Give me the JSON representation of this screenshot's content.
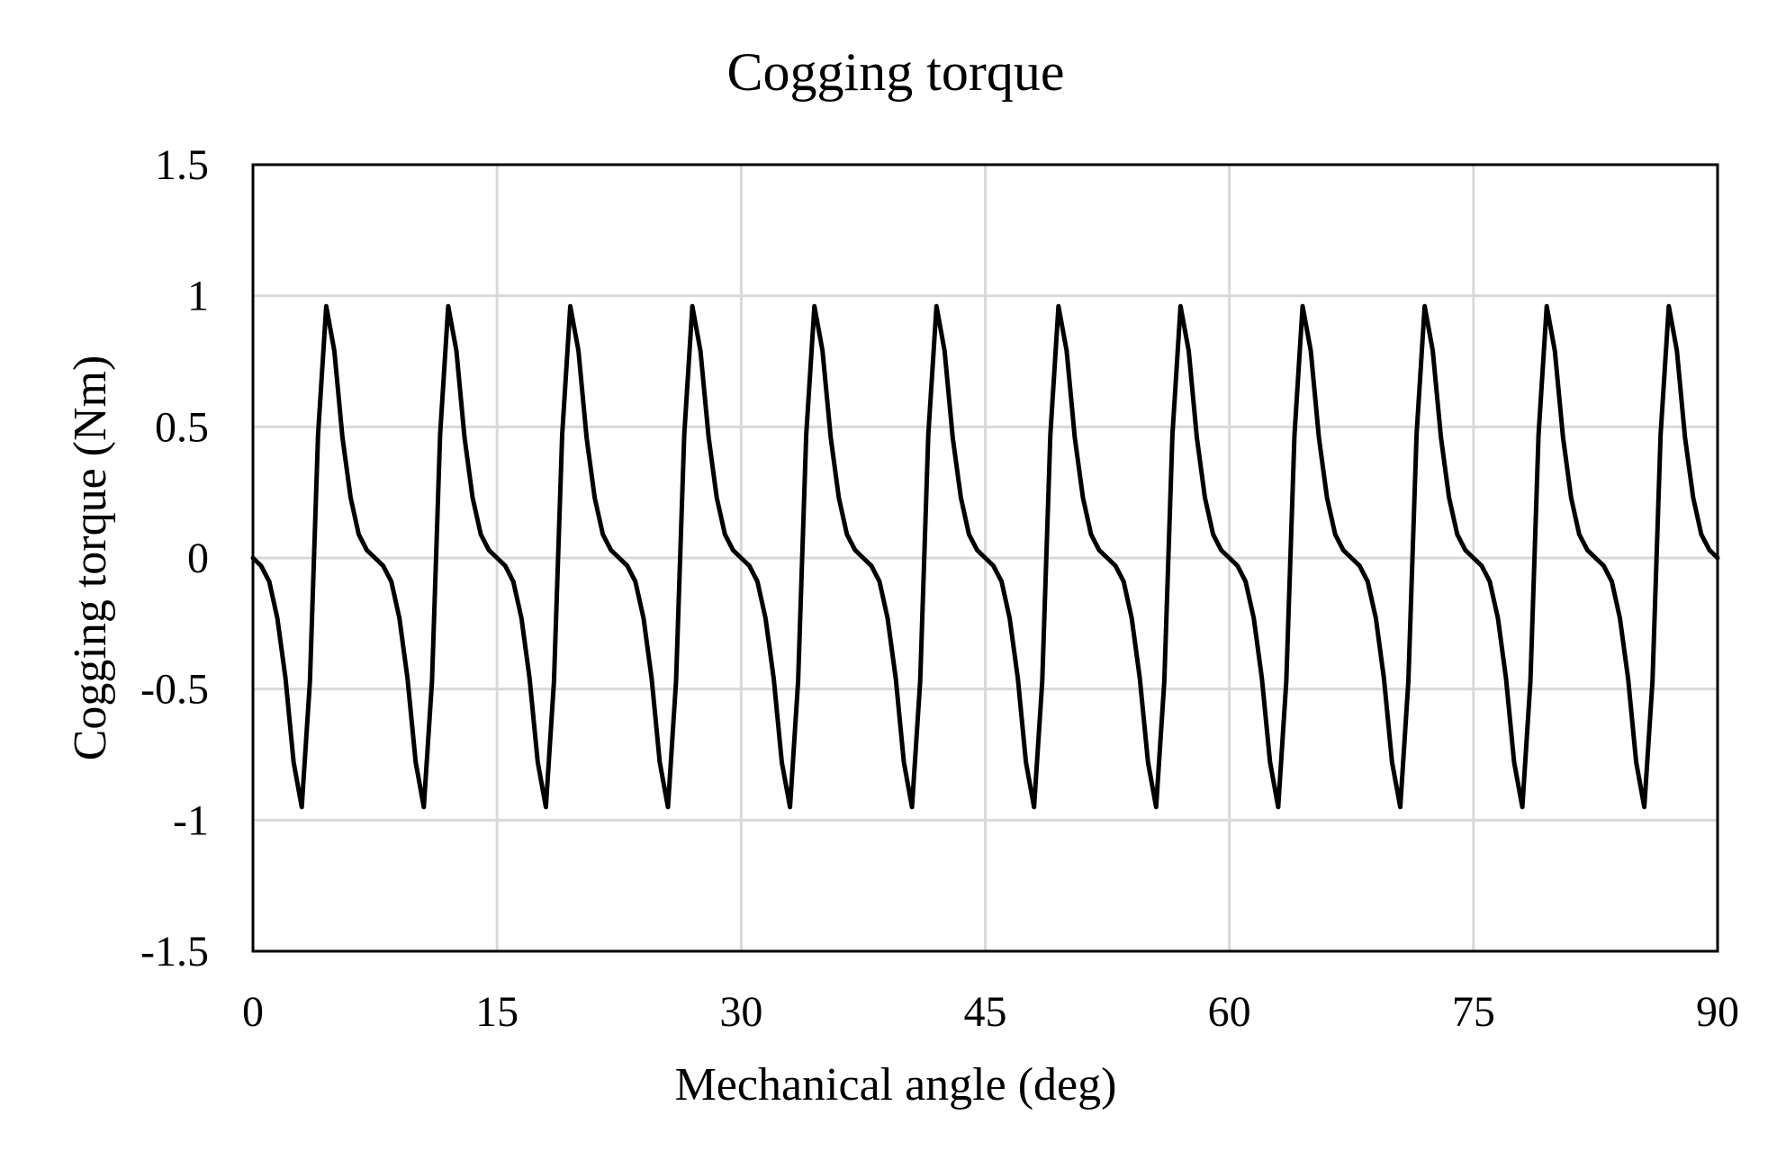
{
  "chart_data": {
    "type": "line",
    "title": "Cogging torque",
    "xlabel": "Mechanical angle (deg)",
    "ylabel": "Cogging torque (Nm)",
    "xlim": [
      0,
      90
    ],
    "ylim": [
      -1.5,
      1.5
    ],
    "x_ticks": [
      "0",
      "15",
      "30",
      "45",
      "60",
      "75",
      "90"
    ],
    "y_ticks": [
      "1.5",
      "1",
      "0.5",
      "0",
      "-0.5",
      "-1",
      "-1.5"
    ],
    "grid": true,
    "legend": "none",
    "line_color": "#000000",
    "grid_color": "#d9d9d9",
    "period_deg": 7.5,
    "series": [
      {
        "x": [
          0,
          0.5,
          1.0,
          1.5,
          2.0,
          2.5,
          3.0,
          3.5,
          4.0,
          4.5,
          5.0,
          5.5,
          6.0,
          6.5,
          7.0,
          7.5,
          8.0,
          8.5,
          9.0,
          9.5,
          10.0,
          10.5,
          11.0,
          11.5,
          12.0,
          12.5,
          13.0,
          13.5,
          14.0,
          14.5,
          15.0,
          15.5,
          16.0,
          16.5,
          17.0,
          17.5,
          18.0,
          18.5,
          19.0,
          19.5,
          20.0,
          20.5,
          21.0,
          21.5,
          22.0,
          22.5,
          23.0,
          23.5,
          24.0,
          24.5,
          25.0,
          25.5,
          26.0,
          26.5,
          27.0,
          27.5,
          28.0,
          28.5,
          29.0,
          29.5,
          30.0,
          30.5,
          31.0,
          31.5,
          32.0,
          32.5,
          33.0,
          33.5,
          34.0,
          34.5,
          35.0,
          35.5,
          36.0,
          36.5,
          37.0,
          37.5,
          38.0,
          38.5,
          39.0,
          39.5,
          40.0,
          40.5,
          41.0,
          41.5,
          42.0,
          42.5,
          43.0,
          43.5,
          44.0,
          44.5,
          45.0,
          45.5,
          46.0,
          46.5,
          47.0,
          47.5,
          48.0,
          48.5,
          49.0,
          49.5,
          50.0,
          50.5,
          51.0,
          51.5,
          52.0,
          52.5,
          53.0,
          53.5,
          54.0,
          54.5,
          55.0,
          55.5,
          56.0,
          56.5,
          57.0,
          57.5,
          58.0,
          58.5,
          59.0,
          59.5,
          60.0,
          60.5,
          61.0,
          61.5,
          62.0,
          62.5,
          63.0,
          63.5,
          64.0,
          64.5,
          65.0,
          65.5,
          66.0,
          66.5,
          67.0,
          67.5,
          68.0,
          68.5,
          69.0,
          69.5,
          70.0,
          70.5,
          71.0,
          71.5,
          72.0,
          72.5,
          73.0,
          73.5,
          74.0,
          74.5,
          75.0,
          75.5,
          76.0,
          76.5,
          77.0,
          77.5,
          78.0,
          78.5,
          79.0,
          79.5,
          80.0,
          80.5,
          81.0,
          81.5,
          82.0,
          82.5,
          83.0,
          83.5,
          84.0,
          84.5,
          85.0,
          85.5,
          86.0,
          86.5,
          87.0,
          87.5,
          88.0,
          88.5,
          89.0,
          89.5,
          90.0
        ],
        "y": [
          0,
          -0.03,
          -0.09,
          -0.23,
          -0.46,
          -0.78,
          -0.95,
          -0.47,
          0.47,
          0.96,
          0.79,
          0.46,
          0.23,
          0.09,
          0.03,
          0,
          -0.03,
          -0.09,
          -0.23,
          -0.46,
          -0.78,
          -0.95,
          -0.47,
          0.47,
          0.96,
          0.79,
          0.46,
          0.23,
          0.09,
          0.03,
          0,
          -0.03,
          -0.09,
          -0.23,
          -0.46,
          -0.78,
          -0.95,
          -0.47,
          0.47,
          0.96,
          0.79,
          0.46,
          0.23,
          0.09,
          0.03,
          0,
          -0.03,
          -0.09,
          -0.23,
          -0.46,
          -0.78,
          -0.95,
          -0.47,
          0.47,
          0.96,
          0.79,
          0.46,
          0.23,
          0.09,
          0.03,
          0,
          -0.03,
          -0.09,
          -0.23,
          -0.46,
          -0.78,
          -0.95,
          -0.47,
          0.47,
          0.96,
          0.79,
          0.46,
          0.23,
          0.09,
          0.03,
          0,
          -0.03,
          -0.09,
          -0.23,
          -0.46,
          -0.78,
          -0.95,
          -0.47,
          0.47,
          0.96,
          0.79,
          0.46,
          0.23,
          0.09,
          0.03,
          0,
          -0.03,
          -0.09,
          -0.23,
          -0.46,
          -0.78,
          -0.95,
          -0.47,
          0.47,
          0.96,
          0.79,
          0.46,
          0.23,
          0.09,
          0.03,
          0,
          -0.03,
          -0.09,
          -0.23,
          -0.46,
          -0.78,
          -0.95,
          -0.47,
          0.47,
          0.96,
          0.79,
          0.46,
          0.23,
          0.09,
          0.03,
          0,
          -0.03,
          -0.09,
          -0.23,
          -0.46,
          -0.78,
          -0.95,
          -0.47,
          0.47,
          0.96,
          0.79,
          0.46,
          0.23,
          0.09,
          0.03,
          0,
          -0.03,
          -0.09,
          -0.23,
          -0.46,
          -0.78,
          -0.95,
          -0.47,
          0.47,
          0.96,
          0.79,
          0.46,
          0.23,
          0.09,
          0.03,
          0,
          -0.03,
          -0.09,
          -0.23,
          -0.46,
          -0.78,
          -0.95,
          -0.47,
          0.47,
          0.96,
          0.79,
          0.46,
          0.23,
          0.09,
          0.03,
          0,
          -0.03,
          -0.09,
          -0.23,
          -0.46,
          -0.78,
          -0.95,
          -0.47,
          0.47,
          0.96,
          0.79,
          0.46,
          0.23,
          0.09,
          0.03,
          0
        ]
      }
    ]
  }
}
